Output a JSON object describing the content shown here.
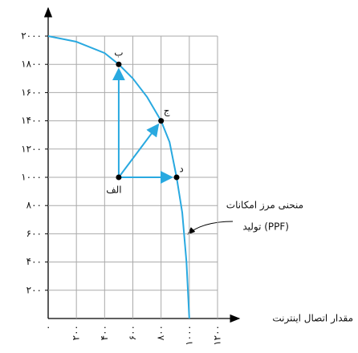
{
  "chart_data": {
    "type": "line",
    "x_label": "مقدار اتصال اینترنت",
    "annotation": [
      "منحنی مرز امکانات",
      "تولید (PPF)"
    ],
    "x": [
      0,
      200,
      400,
      500,
      600,
      700,
      800,
      860,
      910,
      950,
      980,
      1000
    ],
    "series": [
      {
        "color": "#29a9e0",
        "values": [
          2000,
          1960,
          1880,
          1800,
          1700,
          1570,
          1400,
          1250,
          1000,
          750,
          400,
          0
        ]
      }
    ],
    "points": {
      "labels": [
        "الف",
        "ب",
        "ج",
        "د"
      ],
      "x": [
        500,
        500,
        800,
        910
      ],
      "y": [
        1000,
        1800,
        1400,
        1000
      ]
    },
    "xlim": [
      0,
      1200
    ],
    "ylim": [
      0,
      2000
    ],
    "xticks": [
      {
        "value": 0,
        "label": "۰"
      },
      {
        "value": 200,
        "label": "۲۰۰"
      },
      {
        "value": 400,
        "label": "۴۰۰"
      },
      {
        "value": 600,
        "label": "۶۰۰"
      },
      {
        "value": 800,
        "label": "۸۰۰"
      },
      {
        "value": 1000,
        "label": "۱۰۰۰"
      },
      {
        "value": 1200,
        "label": "۱۲۰۰"
      }
    ],
    "yticks": [
      {
        "value": 200,
        "label": "۲۰۰"
      },
      {
        "value": 400,
        "label": "۴۰۰"
      },
      {
        "value": 600,
        "label": "۶۰۰"
      },
      {
        "value": 800,
        "label": "۸۰۰"
      },
      {
        "value": 1000,
        "label": "۱۰۰۰"
      },
      {
        "value": 1200,
        "label": "۱۲۰۰"
      },
      {
        "value": 1400,
        "label": "۱۴۰۰"
      },
      {
        "value": 1600,
        "label": "۱۶۰۰"
      },
      {
        "value": 1800,
        "label": "۱۸۰۰"
      },
      {
        "value": 2000,
        "label": "۲۰۰۰"
      }
    ],
    "grid": true
  }
}
